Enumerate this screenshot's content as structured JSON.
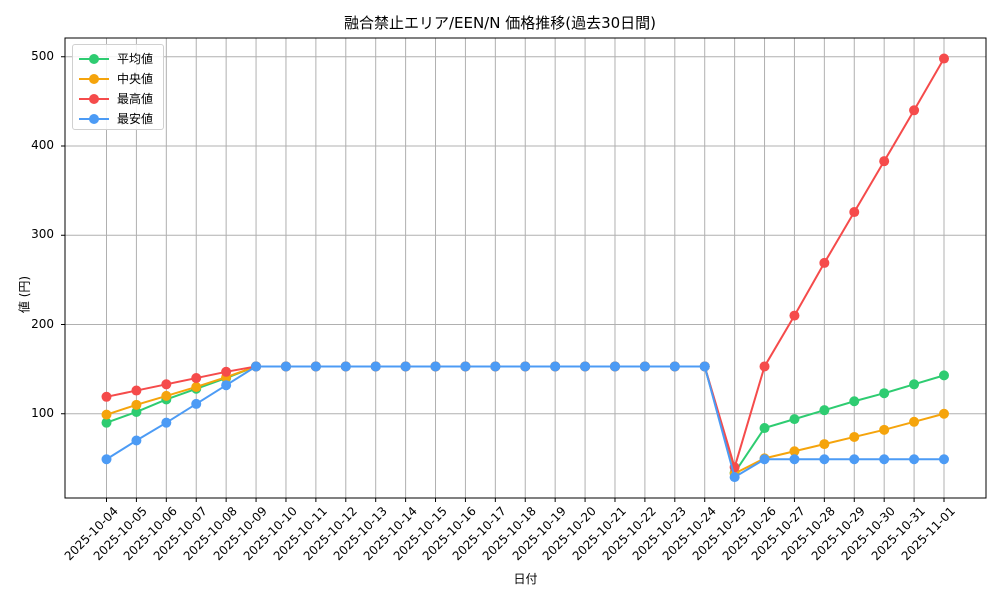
{
  "chart_data": {
    "type": "line",
    "title": "融合禁止エリア/EEN/N 価格推移(過去30日間)",
    "xlabel": "日付",
    "ylabel": "値 (円)",
    "ylim": [
      7,
      522
    ],
    "yticks": [
      100,
      200,
      300,
      400,
      500
    ],
    "grid": true,
    "legend_position": "upper left",
    "x": [
      "2025-10-04",
      "2025-10-05",
      "2025-10-06",
      "2025-10-07",
      "2025-10-08",
      "2025-10-09",
      "2025-10-10",
      "2025-10-11",
      "2025-10-12",
      "2025-10-13",
      "2025-10-14",
      "2025-10-15",
      "2025-10-16",
      "2025-10-17",
      "2025-10-18",
      "2025-10-19",
      "2025-10-20",
      "2025-10-21",
      "2025-10-22",
      "2025-10-23",
      "2025-10-24",
      "2025-10-25",
      "2025-10-26",
      "2025-10-27",
      "2025-10-28",
      "2025-10-29",
      "2025-10-30",
      "2025-10-31",
      "2025-11-01"
    ],
    "series": [
      {
        "name": "平均値",
        "color": "#2ecc71",
        "values": [
          90,
          102,
          116,
          128,
          140,
          153,
          153,
          153,
          153,
          153,
          153,
          153,
          153,
          153,
          153,
          153,
          153,
          153,
          153,
          153,
          153,
          34,
          84,
          94,
          104,
          114,
          123,
          133,
          143
        ]
      },
      {
        "name": "中央値",
        "color": "#f5a40c",
        "values": [
          99,
          110,
          120,
          130,
          141,
          153,
          153,
          153,
          153,
          153,
          153,
          153,
          153,
          153,
          153,
          153,
          153,
          153,
          153,
          153,
          153,
          33,
          50,
          58,
          66,
          74,
          82,
          91,
          100
        ]
      },
      {
        "name": "最高値",
        "color": "#f54b4b",
        "values": [
          119,
          126,
          133,
          140,
          147,
          153,
          153,
          153,
          153,
          153,
          153,
          153,
          153,
          153,
          153,
          153,
          153,
          153,
          153,
          153,
          153,
          40,
          153,
          210,
          269,
          326,
          383,
          440,
          498
        ]
      },
      {
        "name": "最安値",
        "color": "#4c9bf5",
        "values": [
          49,
          70,
          90,
          111,
          132,
          153,
          153,
          153,
          153,
          153,
          153,
          153,
          153,
          153,
          153,
          153,
          153,
          153,
          153,
          153,
          153,
          29,
          49,
          49,
          49,
          49,
          49,
          49,
          49
        ]
      }
    ]
  },
  "legend": {
    "items": [
      {
        "label": "平均値",
        "color": "#2ecc71"
      },
      {
        "label": "中央値",
        "color": "#f5a40c"
      },
      {
        "label": "最高値",
        "color": "#f54b4b"
      },
      {
        "label": "最安値",
        "color": "#4c9bf5"
      }
    ]
  },
  "axes": {
    "ytick_labels": [
      "100",
      "200",
      "300",
      "400",
      "500"
    ]
  }
}
